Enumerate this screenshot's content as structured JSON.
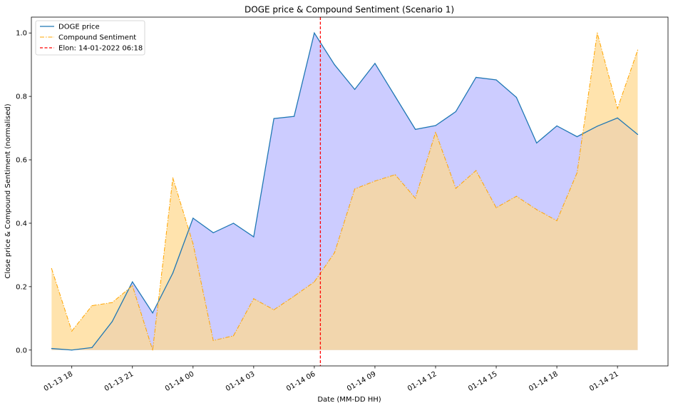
{
  "chart_data": {
    "type": "line",
    "title": "DOGE price & Compound Sentiment (Scenario 1)",
    "xlabel": "Date (MM-DD HH)",
    "ylabel": "Close price & Compound Sentiment (normalised)",
    "x": [
      "2022-01-13 17:00",
      "2022-01-13 18:00",
      "2022-01-13 19:00",
      "2022-01-13 20:00",
      "2022-01-13 21:00",
      "2022-01-13 22:00",
      "2022-01-13 23:00",
      "2022-01-14 00:00",
      "2022-01-14 01:00",
      "2022-01-14 02:00",
      "2022-01-14 03:00",
      "2022-01-14 04:00",
      "2022-01-14 05:00",
      "2022-01-14 06:00",
      "2022-01-14 07:00",
      "2022-01-14 08:00",
      "2022-01-14 09:00",
      "2022-01-14 10:00",
      "2022-01-14 11:00",
      "2022-01-14 12:00",
      "2022-01-14 13:00",
      "2022-01-14 14:00",
      "2022-01-14 15:00",
      "2022-01-14 16:00",
      "2022-01-14 17:00",
      "2022-01-14 18:00",
      "2022-01-14 19:00",
      "2022-01-14 20:00",
      "2022-01-14 21:00",
      "2022-01-14 22:00"
    ],
    "series": [
      {
        "name": "DOGE price",
        "color": "#1f77b4",
        "fill": "#ccccff",
        "style": "solid",
        "values": [
          0.005,
          0.0,
          0.008,
          0.09,
          0.215,
          0.117,
          0.243,
          0.416,
          0.37,
          0.4,
          0.357,
          0.73,
          0.737,
          1.0,
          0.9,
          0.822,
          0.904,
          0.8,
          0.696,
          0.708,
          0.752,
          0.86,
          0.852,
          0.797,
          0.653,
          0.707,
          0.673,
          0.706,
          0.732,
          0.68
        ]
      },
      {
        "name": "Compound Sentiment",
        "color": "#ffa500",
        "fill": "#ffd991",
        "style": "dashdot",
        "values": [
          0.257,
          0.06,
          0.14,
          0.15,
          0.203,
          0.0,
          0.543,
          0.335,
          0.03,
          0.045,
          0.162,
          0.127,
          0.17,
          0.215,
          0.307,
          0.508,
          0.533,
          0.553,
          0.479,
          0.687,
          0.51,
          0.566,
          0.449,
          0.485,
          0.443,
          0.408,
          0.559,
          1.0,
          0.762,
          0.946
        ]
      }
    ],
    "vline": {
      "label": "Elon: 14-01-2022 06:18",
      "x": "2022-01-14 06:18",
      "color": "#ff0000",
      "style": "dashed"
    },
    "xticks": [
      "01-13 18",
      "01-13 21",
      "01-14 00",
      "01-14 03",
      "01-14 06",
      "01-14 09",
      "01-14 12",
      "01-14 15",
      "01-14 18",
      "01-14 21"
    ],
    "yticks": [
      "0.0",
      "0.2",
      "0.4",
      "0.6",
      "0.8",
      "1.0"
    ],
    "xlim": [
      "2022-01-13 16:00",
      "2022-01-14 23:30"
    ],
    "ylim": [
      -0.05,
      1.05
    ],
    "grid": false,
    "legend": "top-left"
  }
}
